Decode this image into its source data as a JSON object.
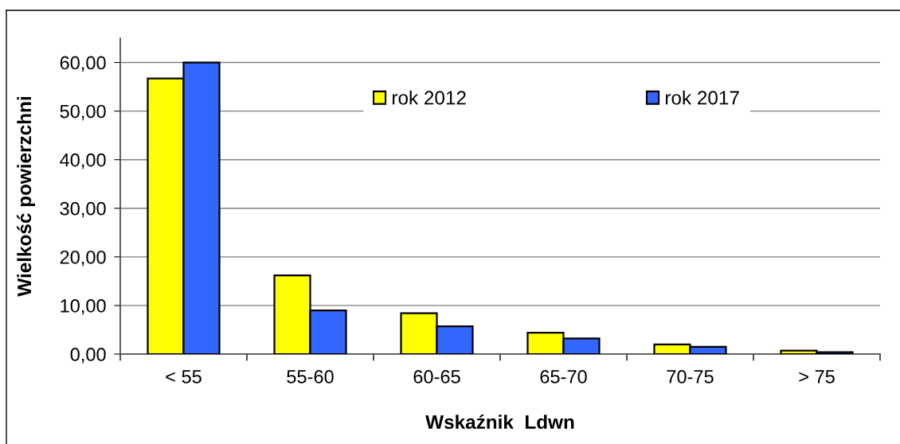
{
  "chart_data": {
    "type": "bar",
    "xlabel": "Wskaźnik  Ldwn",
    "ylabel": "Wielkość powierzchni",
    "categories": [
      "< 55",
      "55-60",
      "60-65",
      "65-70",
      "70-75",
      "> 75"
    ],
    "series": [
      {
        "name": "rok 2012",
        "color": "#ffff00",
        "values": [
          56.7,
          16.2,
          8.4,
          4.4,
          2.0,
          0.7
        ]
      },
      {
        "name": "rok 2017",
        "color": "#3366ff",
        "values": [
          60.0,
          9.0,
          5.7,
          3.2,
          1.5,
          0.4
        ]
      }
    ],
    "ylim": [
      0,
      65
    ],
    "yticks": [
      {
        "value": 0,
        "label": "0,00"
      },
      {
        "value": 10,
        "label": "10,00"
      },
      {
        "value": 20,
        "label": "20,00"
      },
      {
        "value": 30,
        "label": "30,00"
      },
      {
        "value": 40,
        "label": "40,00"
      },
      {
        "value": 50,
        "label": "50,00"
      },
      {
        "value": 60,
        "label": "60,00"
      }
    ],
    "grid": "y",
    "legend": "top"
  }
}
